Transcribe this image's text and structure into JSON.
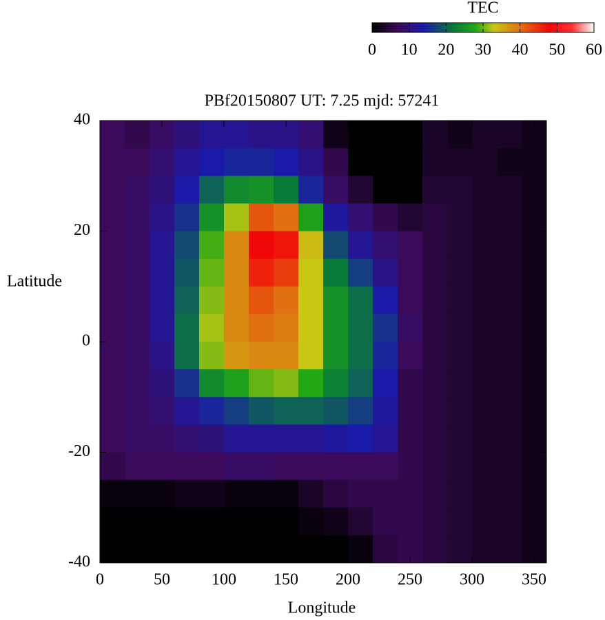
{
  "chart_data": {
    "type": "heatmap",
    "title": "PBf20150807  UT: 7.25  mjd: 57241",
    "xlabel": "Longitude",
    "ylabel": "Latitude",
    "colorbar_label": "TEC",
    "xlim": [
      0,
      360
    ],
    "ylim": [
      -40,
      40
    ],
    "xticks": [
      0,
      50,
      100,
      150,
      200,
      250,
      300,
      350
    ],
    "yticks": [
      -40,
      -20,
      0,
      20,
      40
    ],
    "clim": [
      0,
      60
    ],
    "cticks": [
      0,
      10,
      20,
      30,
      40,
      50,
      60
    ],
    "colorscale": [
      [
        0,
        "#000000"
      ],
      [
        7,
        "#3c0a5a"
      ],
      [
        14,
        "#1a1aa8"
      ],
      [
        22,
        "#0a7a3a"
      ],
      [
        28,
        "#22a814"
      ],
      [
        33,
        "#c8c814"
      ],
      [
        40,
        "#e07010"
      ],
      [
        48,
        "#f00808"
      ],
      [
        54,
        "#ff3030"
      ],
      [
        60,
        "#ffffff"
      ]
    ],
    "x": [
      10,
      30,
      50,
      70,
      90,
      110,
      130,
      150,
      170,
      190,
      210,
      230,
      250,
      270,
      290,
      310,
      330,
      350
    ],
    "y": [
      37.5,
      32.5,
      27.5,
      22.5,
      17.5,
      12.5,
      7.5,
      2.5,
      -2.5,
      -7.5,
      -12.5,
      -17.5,
      -22.5,
      -27.5,
      -32.5,
      -37.5
    ],
    "z": [
      [
        7,
        6,
        8,
        10,
        12,
        12,
        11,
        11,
        9,
        2,
        0,
        0,
        0,
        3,
        2,
        3,
        3,
        2
      ],
      [
        7,
        7,
        9,
        12,
        14,
        15,
        15,
        14,
        11,
        6,
        0,
        0,
        0,
        3,
        3,
        3,
        2,
        2
      ],
      [
        7,
        8,
        10,
        14,
        20,
        24,
        25,
        22,
        15,
        8,
        4,
        0,
        0,
        4,
        4,
        3,
        3,
        2
      ],
      [
        7,
        8,
        11,
        16,
        25,
        32,
        42,
        40,
        27,
        13,
        9,
        6,
        4,
        5,
        4,
        3,
        3,
        2
      ],
      [
        7,
        8,
        12,
        18,
        29,
        38,
        48,
        47,
        34,
        18,
        12,
        9,
        7,
        5,
        4,
        3,
        3,
        2
      ],
      [
        7,
        8,
        12,
        19,
        30,
        38,
        46,
        44,
        33,
        22,
        17,
        11,
        7,
        5,
        4,
        3,
        3,
        2
      ],
      [
        7,
        8,
        12,
        20,
        31,
        38,
        42,
        40,
        33,
        25,
        21,
        14,
        7,
        5,
        4,
        3,
        3,
        2
      ],
      [
        7,
        8,
        12,
        21,
        32,
        38,
        40,
        39,
        33,
        25,
        21,
        16,
        8,
        5,
        4,
        3,
        3,
        2
      ],
      [
        7,
        8,
        11,
        21,
        31,
        37,
        38,
        38,
        33,
        25,
        21,
        15,
        7,
        5,
        4,
        3,
        3,
        2
      ],
      [
        7,
        8,
        10,
        16,
        24,
        27,
        30,
        31,
        28,
        23,
        20,
        14,
        6,
        5,
        4,
        3,
        3,
        2
      ],
      [
        7,
        8,
        9,
        12,
        15,
        17,
        19,
        20,
        20,
        19,
        17,
        13,
        6,
        5,
        4,
        3,
        3,
        2
      ],
      [
        7,
        8,
        8,
        9,
        10,
        12,
        12,
        12,
        12,
        13,
        14,
        12,
        6,
        5,
        4,
        3,
        3,
        2
      ],
      [
        6,
        7,
        7,
        7,
        7,
        8,
        8,
        7,
        7,
        7,
        7,
        7,
        6,
        5,
        4,
        3,
        3,
        2
      ],
      [
        1,
        1,
        1,
        2,
        2,
        1,
        1,
        1,
        3,
        5,
        6,
        6,
        6,
        5,
        4,
        3,
        3,
        2
      ],
      [
        0,
        0,
        0,
        0,
        0,
        0,
        0,
        0,
        1,
        2,
        4,
        6,
        6,
        5,
        4,
        3,
        3,
        2
      ],
      [
        0,
        0,
        0,
        0,
        0,
        0,
        0,
        0,
        0,
        0,
        1,
        5,
        6,
        5,
        4,
        3,
        3,
        2
      ]
    ]
  }
}
